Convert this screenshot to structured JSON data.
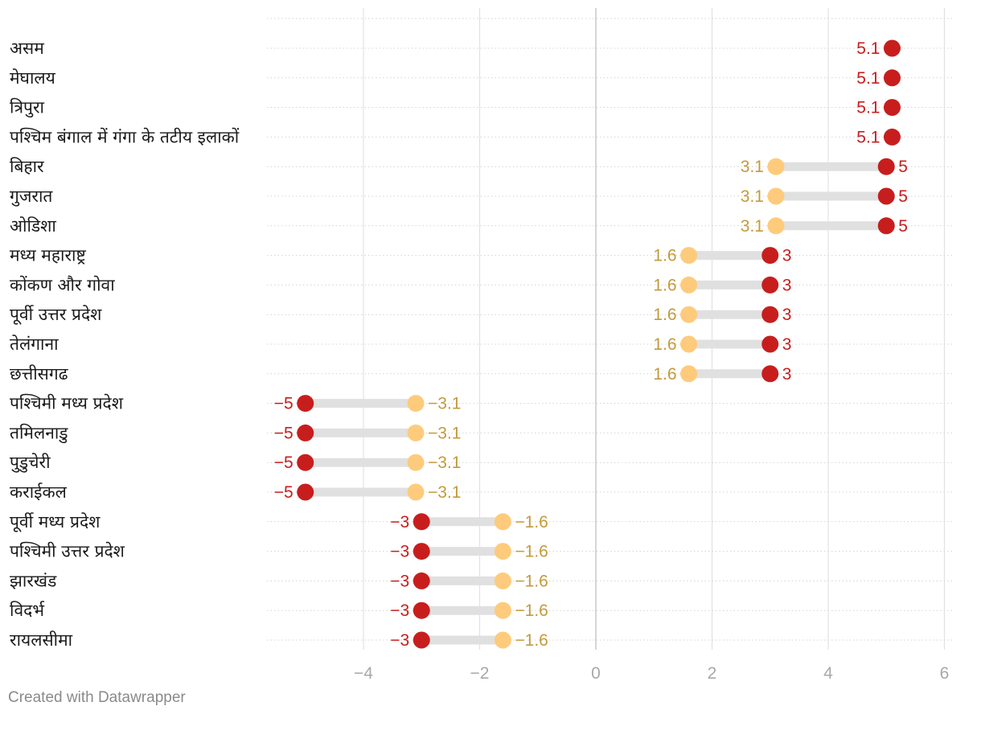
{
  "chart_data": {
    "type": "dumbbell",
    "title": "",
    "xlabel": "",
    "ylabel": "",
    "xlim": [
      -5.6,
      6.1
    ],
    "x_ticks": [
      -4,
      -2,
      0,
      2,
      4,
      6
    ],
    "x_tick_labels": [
      "−4",
      "−2",
      "0",
      "2",
      "4",
      "6"
    ],
    "colors": {
      "red": "#c71e1d",
      "yellow": "#fecb7c",
      "yellow_text": "#c49a3c",
      "connector": "#e0e0e0"
    },
    "rows": [
      {
        "label": "असम",
        "red": 5.1,
        "red_label": "5.1",
        "yellow": null,
        "yellow_label": ""
      },
      {
        "label": "मेघालय",
        "red": 5.1,
        "red_label": "5.1",
        "yellow": null,
        "yellow_label": ""
      },
      {
        "label": "त्रिपुरा",
        "red": 5.1,
        "red_label": "5.1",
        "yellow": null,
        "yellow_label": ""
      },
      {
        "label": "पश्चिम बंगाल में गंगा के तटीय इलाकों",
        "red": 5.1,
        "red_label": "5.1",
        "yellow": null,
        "yellow_label": ""
      },
      {
        "label": "बिहार",
        "red": 5,
        "red_label": "5",
        "yellow": 3.1,
        "yellow_label": "3.1"
      },
      {
        "label": "गुजरात",
        "red": 5,
        "red_label": "5",
        "yellow": 3.1,
        "yellow_label": "3.1"
      },
      {
        "label": "ओडिशा",
        "red": 5,
        "red_label": "5",
        "yellow": 3.1,
        "yellow_label": "3.1"
      },
      {
        "label": "मध्य महाराष्ट्र",
        "red": 3,
        "red_label": "3",
        "yellow": 1.6,
        "yellow_label": "1.6"
      },
      {
        "label": "कोंकण और गोवा",
        "red": 3,
        "red_label": "3",
        "yellow": 1.6,
        "yellow_label": "1.6"
      },
      {
        "label": "पूर्वी उत्तर प्रदेश",
        "red": 3,
        "red_label": "3",
        "yellow": 1.6,
        "yellow_label": "1.6"
      },
      {
        "label": "तेलंगाना",
        "red": 3,
        "red_label": "3",
        "yellow": 1.6,
        "yellow_label": "1.6"
      },
      {
        "label": "छत्तीसगढ",
        "red": 3,
        "red_label": "3",
        "yellow": 1.6,
        "yellow_label": "1.6"
      },
      {
        "label": "पश्चिमी मध्य प्रदेश",
        "red": -5,
        "red_label": "−5",
        "yellow": -3.1,
        "yellow_label": "−3.1"
      },
      {
        "label": "तमिलनाडु",
        "red": -5,
        "red_label": "−5",
        "yellow": -3.1,
        "yellow_label": "−3.1"
      },
      {
        "label": "पुडुचेरी",
        "red": -5,
        "red_label": "−5",
        "yellow": -3.1,
        "yellow_label": "−3.1"
      },
      {
        "label": "कराईकल",
        "red": -5,
        "red_label": "−5",
        "yellow": -3.1,
        "yellow_label": "−3.1"
      },
      {
        "label": "पूर्वी मध्य प्रदेश",
        "red": -3,
        "red_label": "−3",
        "yellow": -1.6,
        "yellow_label": "−1.6"
      },
      {
        "label": "पश्चिमी उत्तर प्रदेश",
        "red": -3,
        "red_label": "−3",
        "yellow": -1.6,
        "yellow_label": "−1.6"
      },
      {
        "label": "झारखंड",
        "red": -3,
        "red_label": "−3",
        "yellow": -1.6,
        "yellow_label": "−1.6"
      },
      {
        "label": "विदर्भ",
        "red": -3,
        "red_label": "−3",
        "yellow": -1.6,
        "yellow_label": "−1.6"
      },
      {
        "label": "रायलसीमा",
        "red": -3,
        "red_label": "−3",
        "yellow": -1.6,
        "yellow_label": "−1.6"
      }
    ]
  },
  "footer": {
    "credit": "Created with Datawrapper"
  }
}
